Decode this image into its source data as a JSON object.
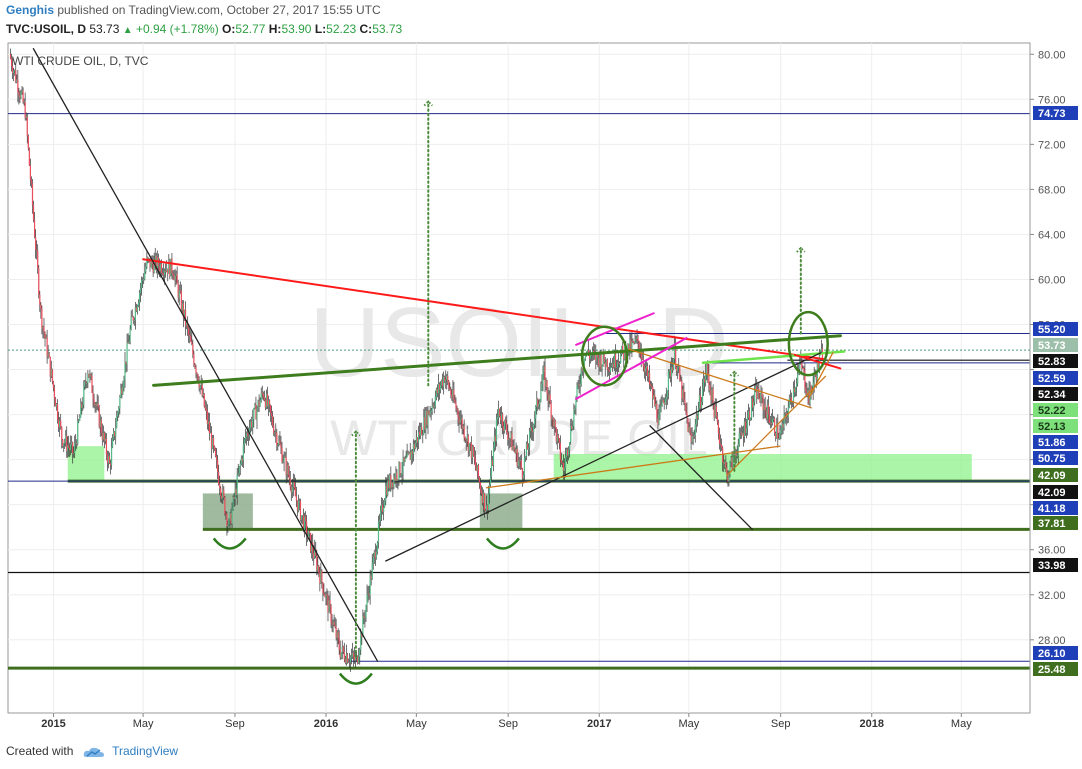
{
  "header": {
    "author": "Genghis",
    "published_text": "published on TradingView.com, October 27, 2017 15:55 UTC"
  },
  "quote": {
    "symbol": "TVC:USOIL, D",
    "last": "53.73",
    "change": "+0.94 (+1.78%)",
    "o_label": "O:",
    "o": "52.77",
    "h_label": "H:",
    "h": "53.90",
    "l_label": "L:",
    "l": "52.23",
    "c_label": "C:",
    "c": "53.73"
  },
  "footer": {
    "created_with": "Created with",
    "brand": "TradingView"
  },
  "chart_data": {
    "type": "candlestick",
    "title": "WTI CRUDE OIL, D, TVC",
    "watermark_symbol": "USOIL, D",
    "watermark_name": "WTI CRUDE OIL",
    "x_ticks": [
      "2015",
      "May",
      "Sep",
      "2016",
      "May",
      "Sep",
      "2017",
      "May",
      "Sep",
      "2018",
      "May"
    ],
    "x_range": [
      "2014-11",
      "2018-08"
    ],
    "y_range": [
      21.5,
      81
    ],
    "y_ticks": [
      80,
      76,
      72,
      68,
      64,
      60,
      56,
      52,
      48,
      44,
      40,
      36,
      32,
      28
    ],
    "y_tick_labels": [
      "80.00",
      "76.00",
      "72.00",
      "68.00",
      "64.00",
      "60.00",
      "56.00",
      "",
      "",
      "",
      "",
      "36.00",
      "32.00",
      "28.00"
    ],
    "price_series_approx": [
      [
        "2014-11-03",
        80.0
      ],
      [
        "2014-11-24",
        75.0
      ],
      [
        "2014-12-15",
        57.0
      ],
      [
        "2015-01-12",
        46.0
      ],
      [
        "2015-01-28",
        44.5
      ],
      [
        "2015-02-16",
        52.0
      ],
      [
        "2015-03-17",
        43.5
      ],
      [
        "2015-04-15",
        56.0
      ],
      [
        "2015-05-06",
        61.5
      ],
      [
        "2015-06-10",
        61.0
      ],
      [
        "2015-07-15",
        51.0
      ],
      [
        "2015-08-24",
        38.0
      ],
      [
        "2015-09-15",
        46.0
      ],
      [
        "2015-10-09",
        50.0
      ],
      [
        "2015-11-10",
        43.0
      ],
      [
        "2015-12-21",
        34.5
      ],
      [
        "2016-01-20",
        27.0
      ],
      [
        "2016-02-11",
        26.1
      ],
      [
        "2016-03-21",
        41.5
      ],
      [
        "2016-04-20",
        44.0
      ],
      [
        "2016-06-08",
        51.5
      ],
      [
        "2016-07-15",
        44.5
      ],
      [
        "2016-08-03",
        39.5
      ],
      [
        "2016-08-19",
        48.5
      ],
      [
        "2016-09-20",
        43.0
      ],
      [
        "2016-10-19",
        51.5
      ],
      [
        "2016-11-14",
        43.0
      ],
      [
        "2016-12-12",
        53.5
      ],
      [
        "2017-01-16",
        52.5
      ],
      [
        "2017-02-22",
        54.5
      ],
      [
        "2017-03-22",
        47.5
      ],
      [
        "2017-04-12",
        53.5
      ],
      [
        "2017-05-04",
        45.5
      ],
      [
        "2017-05-25",
        52.0
      ],
      [
        "2017-06-21",
        42.5
      ],
      [
        "2017-07-31",
        50.0
      ],
      [
        "2017-08-31",
        46.0
      ],
      [
        "2017-09-28",
        52.5
      ],
      [
        "2017-10-09",
        49.5
      ],
      [
        "2017-10-27",
        53.73
      ]
    ],
    "price_levels": [
      {
        "value": 74.73,
        "label": "74.73",
        "style": "navy-line",
        "tag": "blue"
      },
      {
        "value": 55.2,
        "label": "55.20",
        "style": "navy-line",
        "tag": "blue"
      },
      {
        "value": 53.73,
        "label": "53.73",
        "style": "last-price",
        "tag": "gray-green"
      },
      {
        "value": 52.83,
        "label": "52.83",
        "style": "black-line",
        "tag": "black"
      },
      {
        "value": 52.59,
        "label": "52.59",
        "style": "navy-line",
        "tag": "blue"
      },
      {
        "value": 52.34,
        "label": "52.34",
        "tag": "black"
      },
      {
        "value": 52.22,
        "label": "52.22",
        "tag": "light-green"
      },
      {
        "value": 52.13,
        "label": "52.13",
        "tag": "light-green"
      },
      {
        "value": 51.86,
        "label": "51.86",
        "tag": "blue"
      },
      {
        "value": 50.75,
        "label": "50.75",
        "tag": "blue"
      },
      {
        "value": 42.09,
        "label": "42.09",
        "style": "green-line",
        "tag": "green"
      },
      {
        "value": 42.09,
        "label": "42.09",
        "style": "navy-line",
        "tag": "black"
      },
      {
        "value": 41.18,
        "label": "41.18",
        "tag": "blue"
      },
      {
        "value": 37.81,
        "label": "37.81",
        "style": "green-line",
        "tag": "green"
      },
      {
        "value": 33.98,
        "label": "33.98",
        "style": "black-line",
        "tag": "black"
      },
      {
        "value": 26.1,
        "label": "26.10",
        "style": "navy-line",
        "tag": "blue"
      },
      {
        "value": 25.48,
        "label": "25.48",
        "style": "green-line",
        "tag": "green"
      }
    ],
    "trendlines": [
      {
        "color": "#ff1a1a",
        "from": [
          "2015-05-01",
          61.8
        ],
        "to": [
          "2017-10-31",
          52.9
        ]
      },
      {
        "color": "#3e7d1e",
        "from": [
          "2015-05-15",
          50.6
        ],
        "to": [
          "2017-11-20",
          55.0
        ]
      },
      {
        "color": "#6ee34b",
        "from": [
          "2017-05-20",
          52.6
        ],
        "to": [
          "2017-11-25",
          53.6
        ]
      },
      {
        "color": "#222222",
        "from": [
          "2014-12-05",
          80.5
        ],
        "to": [
          "2016-03-10",
          26.1
        ]
      },
      {
        "color": "#222222",
        "from": [
          "2016-03-21",
          35.0
        ],
        "to": [
          "2017-10-25",
          53.5
        ]
      },
      {
        "color": "#222222",
        "from": [
          "2017-03-10",
          47.0
        ],
        "to": [
          "2017-07-25",
          37.8
        ]
      },
      {
        "color": "#cc7a1a",
        "from": [
          "2017-02-10",
          53.8
        ],
        "to": [
          "2017-10-12",
          48.6
        ]
      },
      {
        "color": "#cc7a1a",
        "from": [
          "2016-08-03",
          41.5
        ],
        "to": [
          "2017-08-31",
          45.2
        ]
      },
      {
        "color": "#cc7a1a",
        "from": [
          "2017-06-21",
          42.6
        ],
        "to": [
          "2017-10-31",
          51.4
        ]
      },
      {
        "color": "#cc7a1a",
        "from": [
          "2017-10-09",
          49.5
        ],
        "to": [
          "2017-11-10",
          53.5
        ]
      },
      {
        "color": "#ee22cc",
        "from": [
          "2016-12-01",
          54.2
        ],
        "to": [
          "2017-03-15",
          57.0
        ]
      },
      {
        "color": "#ee22cc",
        "from": [
          "2016-12-01",
          49.4
        ],
        "to": [
          "2017-04-28",
          54.8
        ]
      },
      {
        "color": "#ff1a1a",
        "from": [
          "2017-09-20",
          53.3
        ],
        "to": [
          "2017-11-20",
          52.1
        ]
      }
    ],
    "zones": [
      {
        "color": "light-green",
        "x": [
          "2015-01-20",
          "2015-03-10"
        ],
        "y": [
          42.09,
          45.2
        ]
      },
      {
        "color": "light-green",
        "x": [
          "2016-11-01",
          "2018-05-15"
        ],
        "y": [
          42.09,
          44.5
        ]
      },
      {
        "color": "gray-green",
        "x": [
          "2015-07-20",
          "2015-09-25"
        ],
        "y": [
          37.81,
          41.0
        ]
      },
      {
        "color": "gray-green",
        "x": [
          "2016-07-25",
          "2016-09-20"
        ],
        "y": [
          37.81,
          41.0
        ]
      }
    ],
    "circles": [
      {
        "center": [
          "2017-01-08",
          53.2
        ],
        "rx_days": 30,
        "ry_price": 2.6
      },
      {
        "center": [
          "2017-10-08",
          54.3
        ],
        "rx_days": 26,
        "ry_price": 2.8
      }
    ],
    "targets": [
      {
        "x": "2016-05-17",
        "from": 50.6,
        "to": 75.8
      },
      {
        "x": "2016-02-10",
        "from": 26.5,
        "to": 46.5
      },
      {
        "x": "2017-09-28",
        "from": 55.2,
        "to": 62.8
      },
      {
        "x": "2017-07-01",
        "from": 43.0,
        "to": 51.8
      }
    ],
    "smiles": [
      {
        "center": [
          "2015-08-25",
          37.0
        ]
      },
      {
        "center": [
          "2016-08-25",
          37.0
        ]
      },
      {
        "center": [
          "2016-02-10",
          25.0
        ]
      }
    ]
  }
}
